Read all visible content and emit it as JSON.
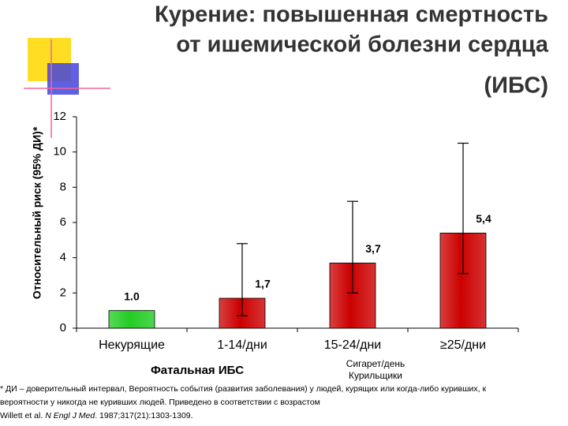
{
  "chart_data": {
    "type": "bar",
    "title_lines": [
      "Курение: повышенная смертность",
      "от ишемической болезни сердца",
      "(ИБС)"
    ],
    "y_label": "Относительный риск (95% ДИ)*",
    "x_annotation": "Фатальная ИБС",
    "x_annotation_2": [
      "Сигарет/день",
      "Курильщики"
    ],
    "categories": [
      "Некурящие",
      "1-14/дни",
      "15-24/дни",
      "≥25/дни"
    ],
    "values": [
      1.0,
      1.7,
      3.7,
      5.4
    ],
    "value_labels": [
      "1.0",
      "1,7",
      "3,7",
      "5,4"
    ],
    "ci_low": [
      null,
      0.7,
      2.0,
      3.1
    ],
    "ci_high": [
      null,
      4.8,
      7.2,
      10.5
    ],
    "colors": [
      "#22cc22",
      "#cc0000",
      "#cc0000",
      "#cc0000"
    ],
    "ylim": [
      0,
      12
    ],
    "yticks": [
      0,
      2,
      4,
      6,
      8,
      10,
      12
    ],
    "footnote": [
      "* ДИ – доверительный интервал, Вероятность события (развития заболевания) у людей, курящих или когда-либо куривших, к",
      "вероятности у никогда не куривших людей. Приведено в соответствии с возрастом"
    ],
    "citation": [
      "Willett et al. ",
      "N Engl J Med",
      ". 1987;317(21):1303-1309."
    ]
  }
}
